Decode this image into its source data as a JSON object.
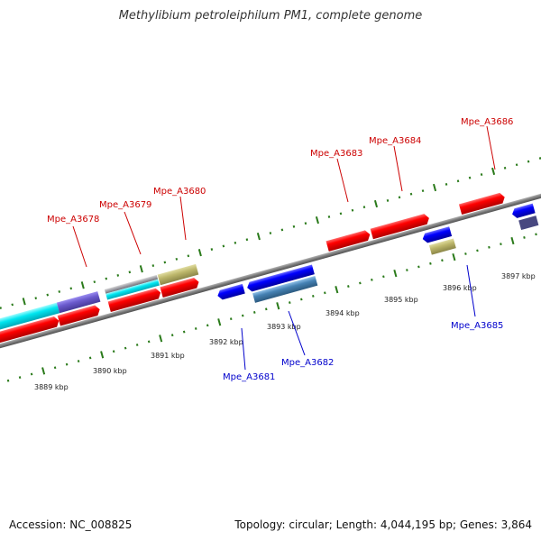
{
  "title": "Methylibium petroleiphilum PM1, complete genome",
  "footer": {
    "accession": "Accession: NC_008825",
    "summary": "Topology: circular; Length: 4,044,195 bp; Genes: 3,864"
  },
  "colors": {
    "forward_label": "#cc0000",
    "reverse_label": "#0000cc",
    "tick": "#2a7a1a",
    "backbone": "#808080"
  },
  "kbp_labels": [
    "3889 kbp",
    "3890 kbp",
    "3891 kbp",
    "3892 kbp",
    "3893 kbp",
    "3894 kbp",
    "3895 kbp",
    "3896 kbp",
    "3897 kbp"
  ],
  "forward_gene_labels": [
    "Mpe_A3678",
    "Mpe_A3679",
    "Mpe_A3680",
    "Mpe_A3683",
    "Mpe_A3684",
    "Mpe_A3686"
  ],
  "reverse_gene_labels": [
    "Mpe_A3681",
    "Mpe_A3682",
    "Mpe_A3685"
  ]
}
